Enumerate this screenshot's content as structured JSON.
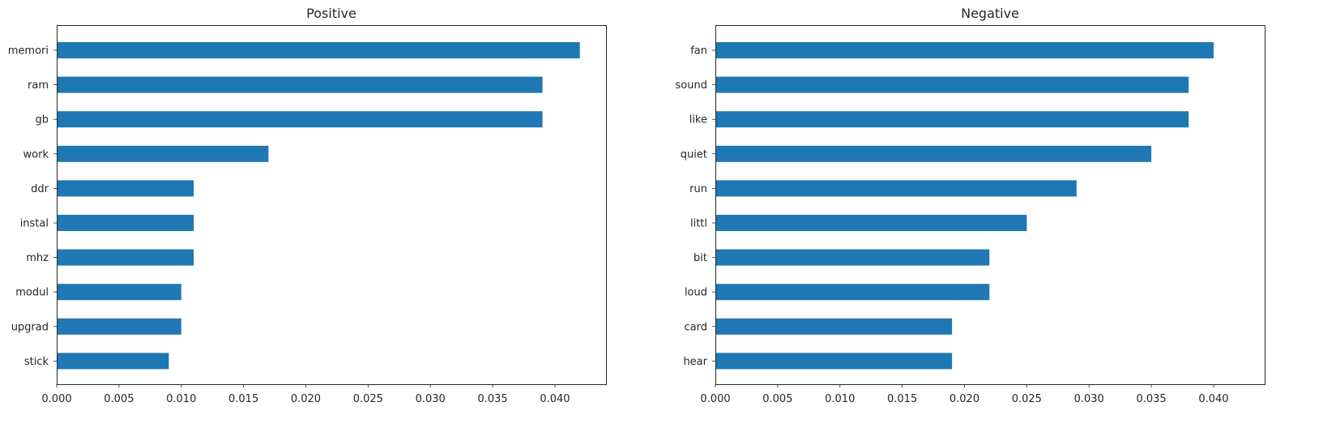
{
  "chart_data": [
    {
      "type": "bar",
      "orientation": "horizontal",
      "title": "Positive",
      "xlabel": "",
      "ylabel": "",
      "categories": [
        "memori",
        "ram",
        "gb",
        "work",
        "ddr",
        "instal",
        "mhz",
        "modul",
        "upgrad",
        "stick"
      ],
      "values": [
        0.042,
        0.039,
        0.039,
        0.017,
        0.011,
        0.011,
        0.011,
        0.01,
        0.01,
        0.009
      ],
      "xlim": [
        0,
        0.0441
      ],
      "xticks": [
        "0.000",
        "0.005",
        "0.010",
        "0.015",
        "0.020",
        "0.025",
        "0.030",
        "0.035",
        "0.040"
      ],
      "grid": false,
      "bar_color": "#1f77b4"
    },
    {
      "type": "bar",
      "orientation": "horizontal",
      "title": "Negative",
      "xlabel": "",
      "ylabel": "",
      "categories": [
        "fan",
        "sound",
        "like",
        "quiet",
        "run",
        "littl",
        "bit",
        "loud",
        "card",
        "hear"
      ],
      "values": [
        0.04,
        0.038,
        0.038,
        0.035,
        0.029,
        0.025,
        0.022,
        0.022,
        0.019,
        0.019
      ],
      "xlim": [
        0,
        0.0441
      ],
      "xticks": [
        "0.000",
        "0.005",
        "0.010",
        "0.015",
        "0.020",
        "0.025",
        "0.030",
        "0.035",
        "0.040"
      ],
      "grid": false,
      "bar_color": "#1f77b4"
    }
  ]
}
